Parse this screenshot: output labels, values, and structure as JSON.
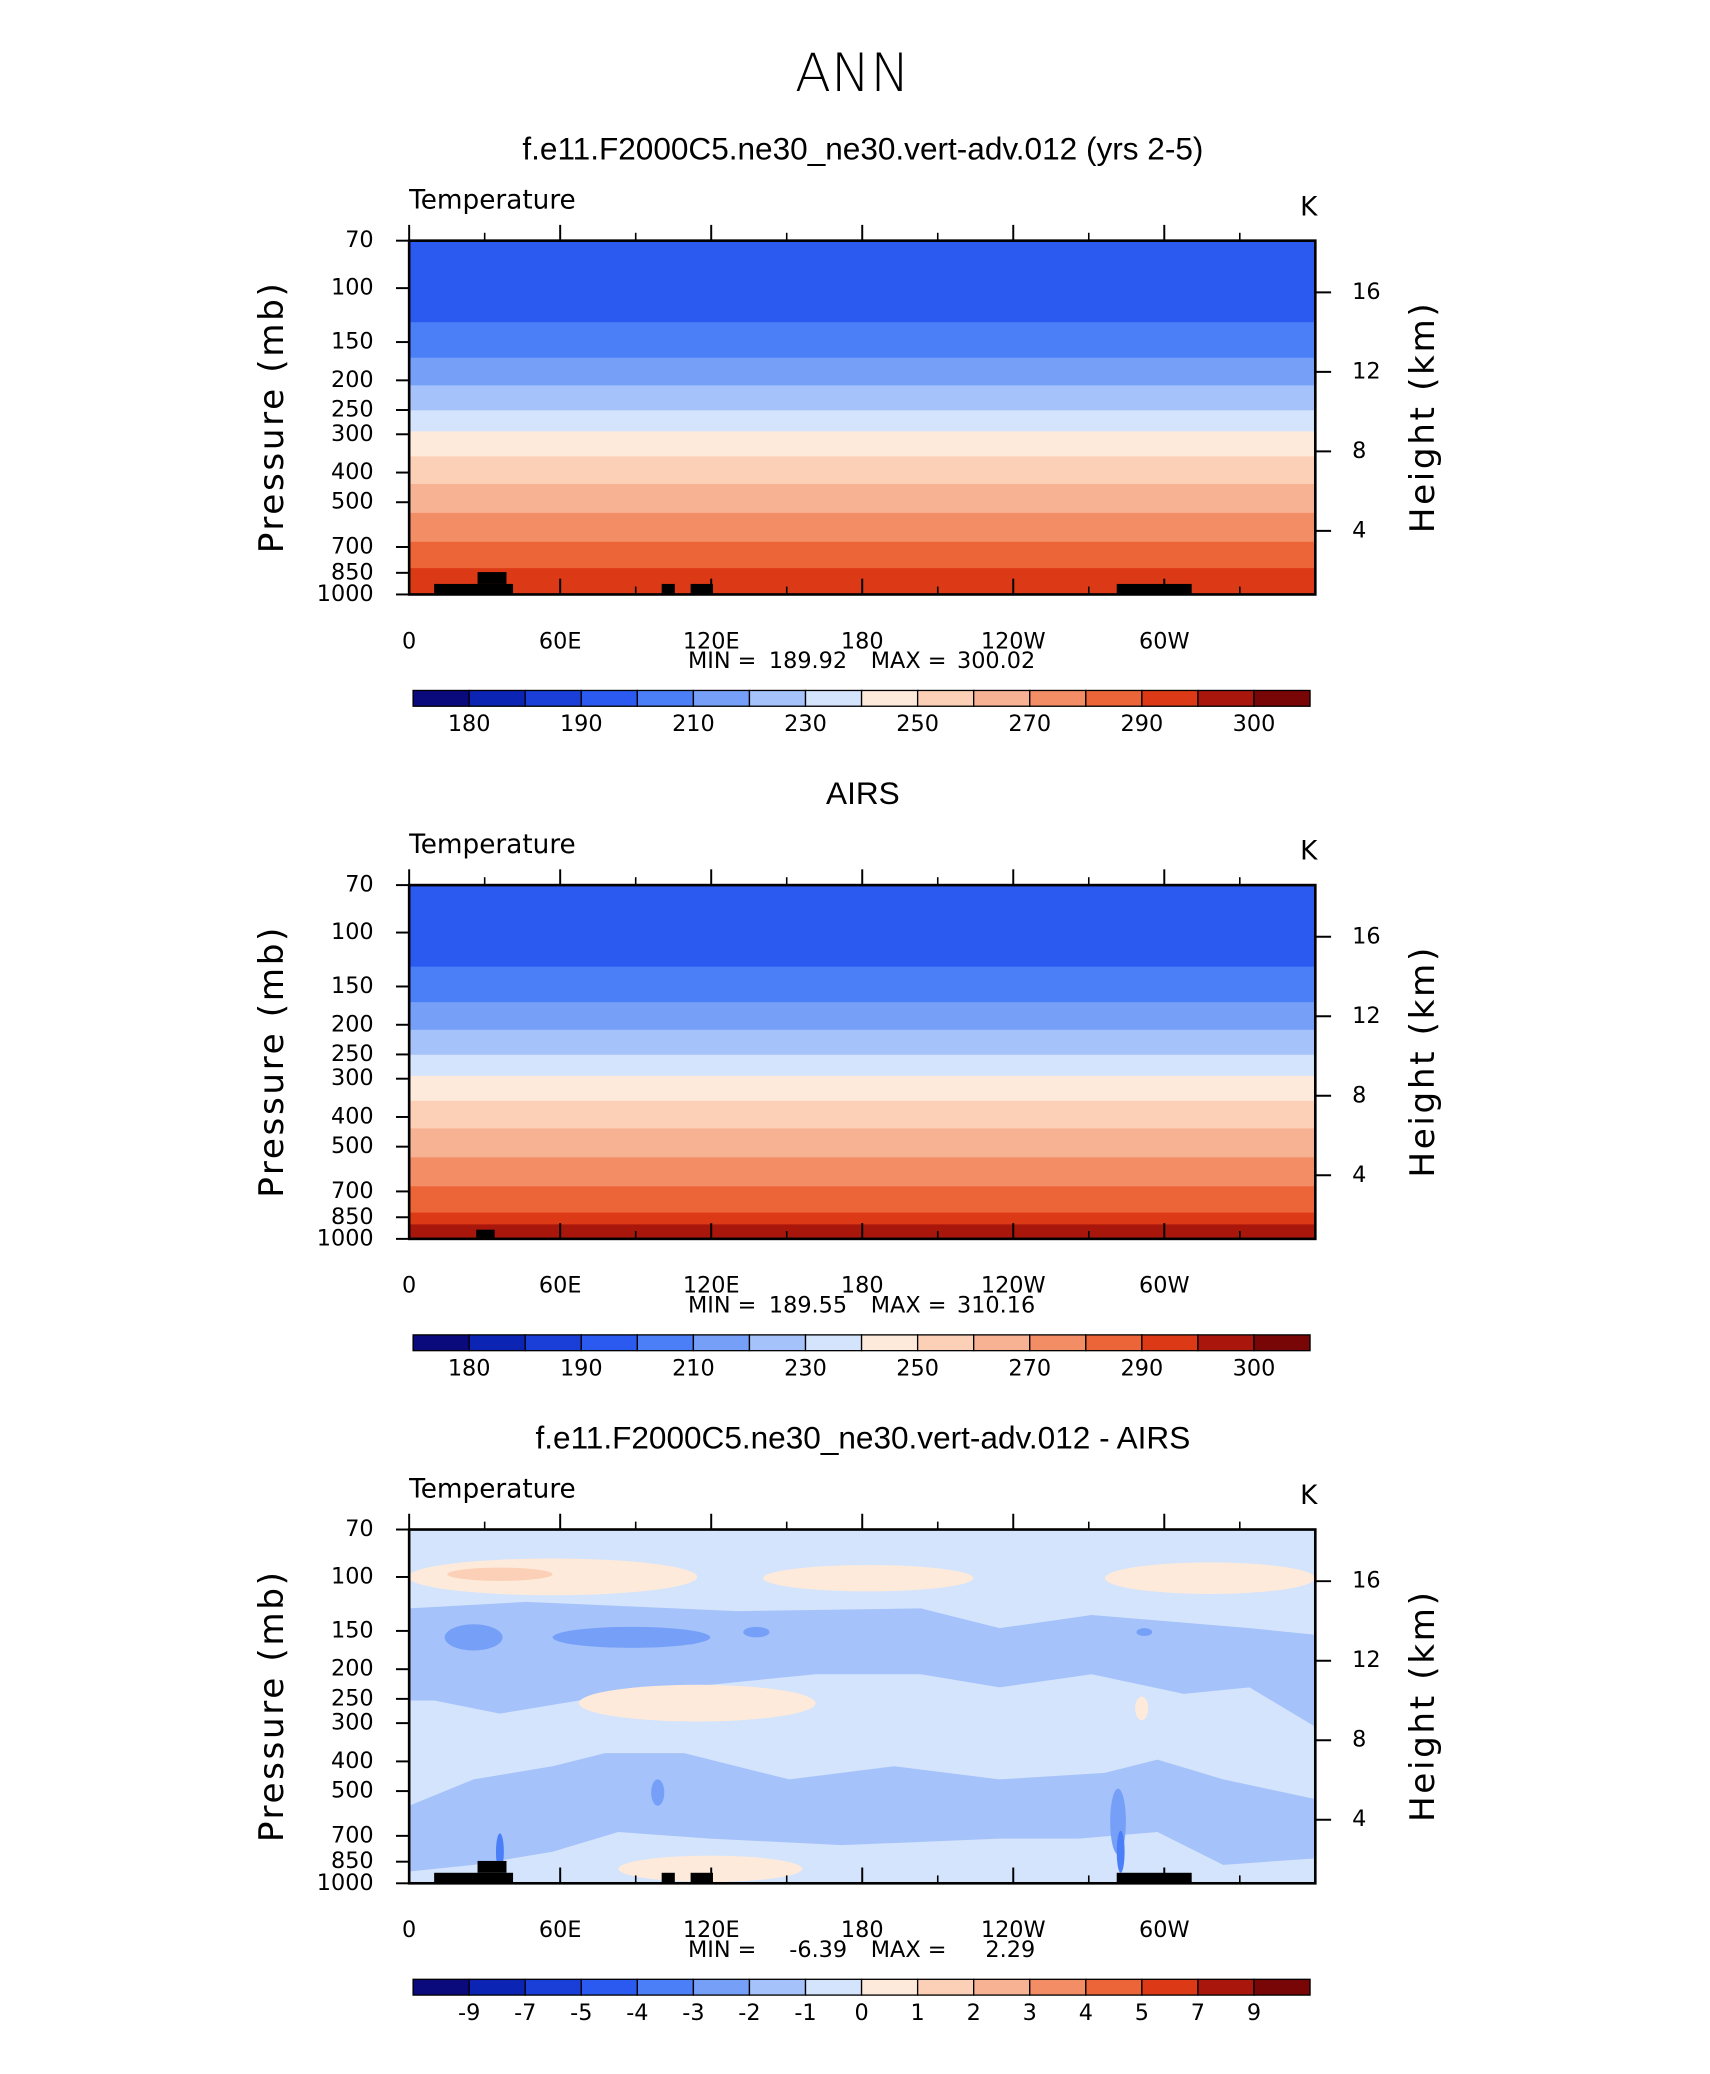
{
  "title": "ANN",
  "chart_data": [
    {
      "type": "contour",
      "title": "f.e11.F2000C5.ne30_ne30.vert-adv.012 (yrs 2-5)",
      "subtitle": "Temperature",
      "units": "K",
      "ylabel": "Pressure (mb)",
      "y2label": "Height (km)",
      "xlim": [
        0,
        360
      ],
      "xticks": [
        0,
        {
          "value": 60,
          "label": "60E"
        },
        {
          "value": 120,
          "label": "120E"
        },
        180,
        {
          "value": 240,
          "label": "120W"
        },
        {
          "value": 300,
          "label": "60W"
        }
      ],
      "ylim": [
        1000,
        70
      ],
      "log_y": true,
      "yticks": [
        70,
        100,
        150,
        200,
        250,
        300,
        400,
        500,
        700,
        850,
        1000
      ],
      "y2lim": [
        0.8,
        18.6
      ],
      "y2ticks": [
        4,
        8,
        12,
        16
      ],
      "min_label": "MIN =",
      "min": 189.92,
      "max_label": "MAX =",
      "max": 300.02,
      "colorbar_labels": [
        180,
        190,
        210,
        230,
        250,
        270,
        290,
        300
      ],
      "colors": [
        "#0a0a7d",
        "#0b24b4",
        "#1a3fd8",
        "#2a5af0",
        "#4a7ff7",
        "#76a0f8",
        "#a6c2fa",
        "#d3e4fc",
        "#fdeadb",
        "#fbd0b6",
        "#f7b293",
        "#f28d66",
        "#ec6538",
        "#dc3a16",
        "#a8160c",
        "#790606"
      ]
    },
    {
      "type": "contour",
      "title": "AIRS",
      "subtitle": "Temperature",
      "units": "K",
      "ylabel": "Pressure (mb)",
      "y2label": "Height (km)",
      "xlim": [
        0,
        360
      ],
      "xticks": [
        0,
        {
          "value": 60,
          "label": "60E"
        },
        {
          "value": 120,
          "label": "120E"
        },
        180,
        {
          "value": 240,
          "label": "120W"
        },
        {
          "value": 300,
          "label": "60W"
        }
      ],
      "ylim": [
        1000,
        70
      ],
      "log_y": true,
      "yticks": [
        70,
        100,
        150,
        200,
        250,
        300,
        400,
        500,
        700,
        850,
        1000
      ],
      "y2lim": [
        0.8,
        18.6
      ],
      "y2ticks": [
        4,
        8,
        12,
        16
      ],
      "min_label": "MIN =",
      "min": 189.55,
      "max_label": "MAX =",
      "max": 310.16,
      "colorbar_labels": [
        180,
        190,
        210,
        230,
        250,
        270,
        290,
        300
      ],
      "colors": [
        "#0a0a7d",
        "#0b24b4",
        "#1a3fd8",
        "#2a5af0",
        "#4a7ff7",
        "#76a0f8",
        "#a6c2fa",
        "#d3e4fc",
        "#fdeadb",
        "#fbd0b6",
        "#f7b293",
        "#f28d66",
        "#ec6538",
        "#dc3a16",
        "#a8160c",
        "#790606"
      ]
    },
    {
      "type": "contour",
      "title": "f.e11.F2000C5.ne30_ne30.vert-adv.012 - AIRS",
      "subtitle": "Temperature",
      "units": "K",
      "ylabel": "Pressure (mb)",
      "y2label": "Height (km)",
      "xlim": [
        0,
        360
      ],
      "xticks": [
        0,
        {
          "value": 60,
          "label": "60E"
        },
        {
          "value": 120,
          "label": "120E"
        },
        180,
        {
          "value": 240,
          "label": "120W"
        },
        {
          "value": 300,
          "label": "60W"
        }
      ],
      "ylim": [
        1000,
        70
      ],
      "log_y": true,
      "yticks": [
        70,
        100,
        150,
        200,
        250,
        300,
        400,
        500,
        700,
        850,
        1000
      ],
      "y2lim": [
        0.8,
        18.6
      ],
      "y2ticks": [
        4,
        8,
        12,
        16
      ],
      "min_label": "MIN =",
      "min": -6.39,
      "max_label": "MAX =",
      "max": 2.29,
      "colorbar_labels": [
        -9,
        -7,
        -5,
        -4,
        -3,
        -2,
        -1,
        0,
        1,
        2,
        3,
        4,
        5,
        7,
        9
      ],
      "colors": [
        "#0a0a7d",
        "#0b24b4",
        "#1a3fd8",
        "#2a5af0",
        "#4a7ff7",
        "#76a0f8",
        "#a6c2fa",
        "#d3e4fc",
        "#fdeadb",
        "#fbd0b6",
        "#f7b293",
        "#f28d66",
        "#ec6538",
        "#dc3a16",
        "#a8160c",
        "#790606"
      ]
    }
  ]
}
